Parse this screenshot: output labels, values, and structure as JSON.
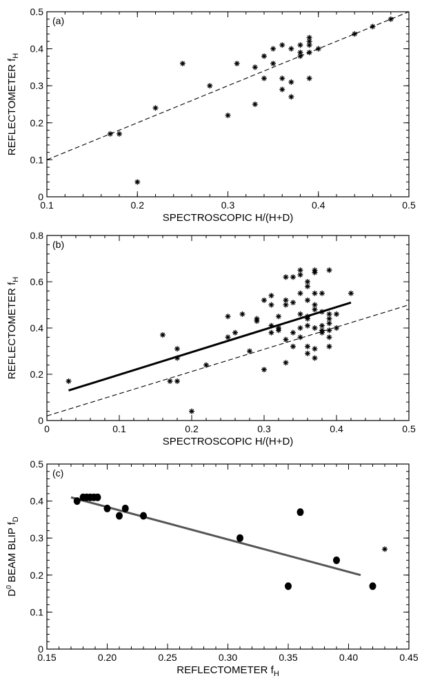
{
  "chart_data": [
    {
      "type": "scatter",
      "panel_label": "(a)",
      "xlabel": "SPECTROSCOPIC H/(H+D)",
      "ylabel": "REFLECTOMETER f",
      "ylabel_sub": "H",
      "xlim": [
        0.1,
        0.5
      ],
      "ylim": [
        0,
        0.5
      ],
      "xticks": [
        "0.1",
        "0.2",
        "0.3",
        "0.4",
        "0.5"
      ],
      "yticks": [
        "0",
        "0.1",
        "0.2",
        "0.3",
        "0.4",
        "0.5"
      ],
      "marker": "asterisk",
      "points": [
        [
          0.17,
          0.17
        ],
        [
          0.18,
          0.17
        ],
        [
          0.2,
          0.04
        ],
        [
          0.22,
          0.24
        ],
        [
          0.25,
          0.36
        ],
        [
          0.28,
          0.3
        ],
        [
          0.3,
          0.22
        ],
        [
          0.31,
          0.36
        ],
        [
          0.33,
          0.25
        ],
        [
          0.33,
          0.35
        ],
        [
          0.34,
          0.32
        ],
        [
          0.34,
          0.38
        ],
        [
          0.35,
          0.36
        ],
        [
          0.35,
          0.4
        ],
        [
          0.36,
          0.29
        ],
        [
          0.36,
          0.32
        ],
        [
          0.36,
          0.41
        ],
        [
          0.37,
          0.27
        ],
        [
          0.37,
          0.31
        ],
        [
          0.37,
          0.4
        ],
        [
          0.38,
          0.38
        ],
        [
          0.38,
          0.39
        ],
        [
          0.38,
          0.41
        ],
        [
          0.39,
          0.32
        ],
        [
          0.39,
          0.39
        ],
        [
          0.39,
          0.41
        ],
        [
          0.39,
          0.42
        ],
        [
          0.39,
          0.43
        ],
        [
          0.4,
          0.4
        ],
        [
          0.44,
          0.44
        ],
        [
          0.46,
          0.46
        ],
        [
          0.48,
          0.48
        ]
      ],
      "lines": [
        {
          "style": "dashed",
          "color": "#000000",
          "x": [
            0.1,
            0.5
          ],
          "y": [
            0.1,
            0.5
          ]
        }
      ]
    },
    {
      "type": "scatter",
      "panel_label": "(b)",
      "xlabel": "SPECTROSCOPIC H/(H+D)",
      "ylabel": "REFLECTOMETER f",
      "ylabel_sub": "H",
      "xlim": [
        0,
        0.5
      ],
      "ylim": [
        0,
        0.8
      ],
      "xticks": [
        "0",
        "0.1",
        "0.2",
        "0.3",
        "0.4",
        "0.5"
      ],
      "yticks": [
        "0",
        "0.2",
        "0.4",
        "0.6",
        "0.8"
      ],
      "marker": "asterisk",
      "points": [
        [
          0.03,
          0.17
        ],
        [
          0.16,
          0.37
        ],
        [
          0.17,
          0.17
        ],
        [
          0.18,
          0.17
        ],
        [
          0.18,
          0.27
        ],
        [
          0.18,
          0.31
        ],
        [
          0.2,
          0.04
        ],
        [
          0.22,
          0.24
        ],
        [
          0.25,
          0.36
        ],
        [
          0.25,
          0.45
        ],
        [
          0.26,
          0.38
        ],
        [
          0.27,
          0.46
        ],
        [
          0.28,
          0.3
        ],
        [
          0.29,
          0.43
        ],
        [
          0.29,
          0.44
        ],
        [
          0.3,
          0.22
        ],
        [
          0.3,
          0.52
        ],
        [
          0.31,
          0.38
        ],
        [
          0.31,
          0.41
        ],
        [
          0.31,
          0.5
        ],
        [
          0.31,
          0.54
        ],
        [
          0.32,
          0.39
        ],
        [
          0.32,
          0.4
        ],
        [
          0.32,
          0.45
        ],
        [
          0.33,
          0.25
        ],
        [
          0.33,
          0.35
        ],
        [
          0.33,
          0.5
        ],
        [
          0.33,
          0.52
        ],
        [
          0.33,
          0.62
        ],
        [
          0.34,
          0.32
        ],
        [
          0.34,
          0.38
        ],
        [
          0.34,
          0.51
        ],
        [
          0.34,
          0.62
        ],
        [
          0.35,
          0.36
        ],
        [
          0.35,
          0.4
        ],
        [
          0.35,
          0.46
        ],
        [
          0.35,
          0.55
        ],
        [
          0.35,
          0.63
        ],
        [
          0.35,
          0.65
        ],
        [
          0.36,
          0.29
        ],
        [
          0.36,
          0.32
        ],
        [
          0.36,
          0.41
        ],
        [
          0.36,
          0.44
        ],
        [
          0.36,
          0.45
        ],
        [
          0.36,
          0.52
        ],
        [
          0.36,
          0.58
        ],
        [
          0.36,
          0.6
        ],
        [
          0.37,
          0.27
        ],
        [
          0.37,
          0.31
        ],
        [
          0.37,
          0.4
        ],
        [
          0.37,
          0.48
        ],
        [
          0.37,
          0.5
        ],
        [
          0.37,
          0.55
        ],
        [
          0.37,
          0.64
        ],
        [
          0.37,
          0.65
        ],
        [
          0.38,
          0.38
        ],
        [
          0.38,
          0.39
        ],
        [
          0.38,
          0.41
        ],
        [
          0.38,
          0.47
        ],
        [
          0.38,
          0.55
        ],
        [
          0.39,
          0.32
        ],
        [
          0.39,
          0.36
        ],
        [
          0.39,
          0.39
        ],
        [
          0.39,
          0.42
        ],
        [
          0.39,
          0.44
        ],
        [
          0.39,
          0.46
        ],
        [
          0.39,
          0.65
        ],
        [
          0.4,
          0.4
        ],
        [
          0.4,
          0.46
        ],
        [
          0.42,
          0.55
        ]
      ],
      "lines": [
        {
          "style": "dashed",
          "color": "#000000",
          "x": [
            0,
            0.5
          ],
          "y": [
            0.02,
            0.5
          ]
        },
        {
          "style": "solid-thick",
          "color": "#000000",
          "x": [
            0.03,
            0.42
          ],
          "y": [
            0.13,
            0.51
          ]
        }
      ]
    },
    {
      "type": "scatter",
      "panel_label": "(c)",
      "xlabel": "REFLECTOMETER f",
      "xlabel_sub": "H",
      "ylabel": "BEAM BLIP f",
      "ylabel_prefix": "D",
      "ylabel_prefix_sup": "0",
      "ylabel_sub": "D",
      "xlim": [
        0.15,
        0.45
      ],
      "ylim": [
        0,
        0.5
      ],
      "xticks": [
        "0.15",
        "0.20",
        "0.25",
        "0.30",
        "0.35",
        "0.40",
        "0.45"
      ],
      "yticks": [
        "0",
        "0.1",
        "0.2",
        "0.3",
        "0.4",
        "0.5"
      ],
      "marker": "filled-circle",
      "points": [
        [
          0.175,
          0.4
        ],
        [
          0.18,
          0.41
        ],
        [
          0.183,
          0.41
        ],
        [
          0.186,
          0.41
        ],
        [
          0.189,
          0.41
        ],
        [
          0.192,
          0.41
        ],
        [
          0.2,
          0.38
        ],
        [
          0.21,
          0.36
        ],
        [
          0.215,
          0.38
        ],
        [
          0.23,
          0.36
        ],
        [
          0.31,
          0.3
        ],
        [
          0.35,
          0.17
        ],
        [
          0.36,
          0.37
        ],
        [
          0.39,
          0.24
        ],
        [
          0.42,
          0.17
        ]
      ],
      "extra_points": [
        [
          0.43,
          0.27
        ]
      ],
      "extra_marker": "asterisk",
      "lines": [
        {
          "style": "solid-gray",
          "color": "#555555",
          "x": [
            0.17,
            0.41
          ],
          "y": [
            0.41,
            0.2
          ]
        }
      ]
    }
  ]
}
